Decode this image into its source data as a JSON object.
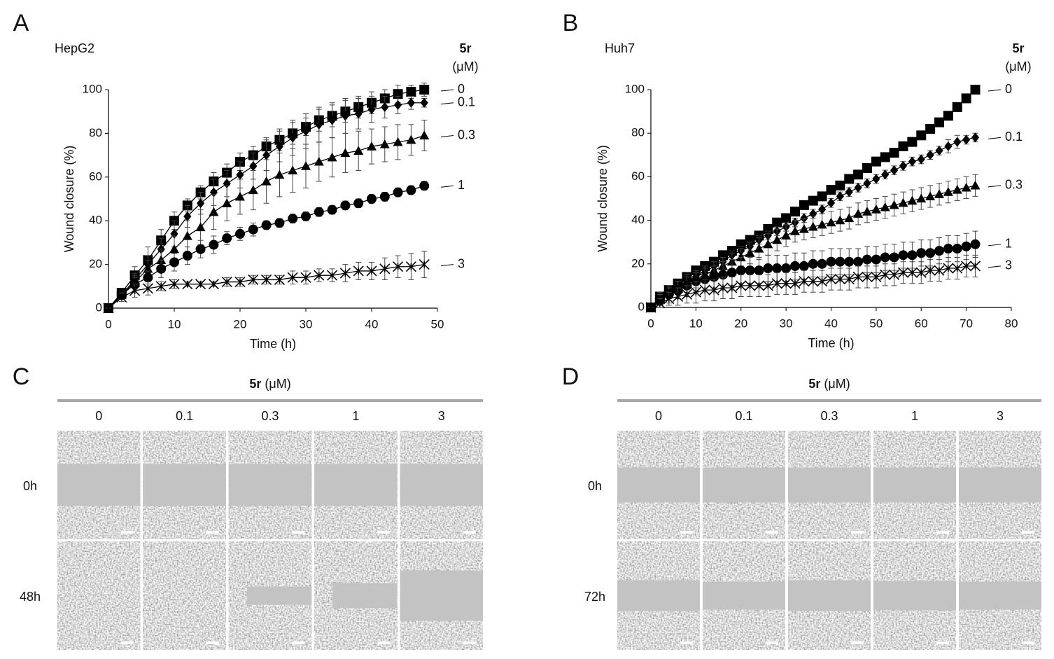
{
  "chart_data": [
    {
      "type": "line",
      "panel": "A",
      "subtitle": "HepG2",
      "legend_title": "5r",
      "legend_unit": "(μM)",
      "xlabel": "Time (h)",
      "ylabel": "Wound closure (%)",
      "x": [
        0,
        2,
        4,
        6,
        8,
        10,
        12,
        14,
        16,
        18,
        20,
        22,
        24,
        26,
        28,
        30,
        32,
        34,
        36,
        38,
        40,
        42,
        44,
        46,
        48
      ],
      "xlim": [
        0,
        50
      ],
      "xticks": [
        0,
        10,
        20,
        30,
        40,
        50
      ],
      "ylim": [
        0,
        100
      ],
      "yticks": [
        0,
        20,
        40,
        60,
        80,
        100
      ],
      "series": [
        {
          "name": "0",
          "color": "#000000",
          "marker": "square",
          "values": [
            0,
            7,
            15,
            22,
            31,
            40,
            47,
            53,
            58,
            62,
            67,
            70,
            74,
            77,
            80,
            83,
            86,
            88,
            90,
            92,
            94,
            96,
            98,
            99,
            100
          ],
          "errors": [
            0,
            2,
            4,
            6,
            5,
            4,
            3,
            3,
            4,
            4,
            4,
            4,
            4,
            5,
            5,
            4,
            5,
            5,
            5,
            5,
            5,
            4,
            4,
            3,
            3
          ]
        },
        {
          "name": "0.1",
          "color": "#000000",
          "marker": "diamond",
          "values": [
            0,
            6,
            13,
            20,
            27,
            34,
            42,
            48,
            53,
            57,
            61,
            65,
            70,
            74,
            78,
            81,
            84,
            86,
            88,
            89,
            91,
            92,
            93,
            94,
            94
          ],
          "errors": [
            0,
            2,
            3,
            4,
            5,
            6,
            5,
            5,
            6,
            6,
            6,
            6,
            7,
            7,
            8,
            8,
            8,
            8,
            8,
            7,
            6,
            5,
            4,
            3,
            2
          ]
        },
        {
          "name": "0.3",
          "color": "#000000",
          "marker": "triangle",
          "values": [
            0,
            6,
            12,
            18,
            22,
            27,
            33,
            37,
            44,
            48,
            51,
            54,
            58,
            61,
            63,
            65,
            67,
            69,
            71,
            72,
            74,
            75,
            76,
            77,
            79
          ],
          "errors": [
            0,
            2,
            3,
            4,
            5,
            6,
            7,
            8,
            8,
            8,
            8,
            9,
            10,
            10,
            10,
            10,
            9,
            9,
            9,
            9,
            8,
            8,
            8,
            7,
            7
          ]
        },
        {
          "name": "1",
          "color": "#000000",
          "marker": "circle",
          "values": [
            0,
            6,
            11,
            14,
            18,
            21,
            24,
            27,
            29,
            32,
            34,
            36,
            38,
            39,
            41,
            42,
            44,
            45,
            47,
            48,
            50,
            51,
            53,
            54,
            56
          ],
          "errors": [
            0,
            2,
            3,
            3,
            4,
            4,
            4,
            4,
            4,
            3,
            3,
            3,
            2,
            2,
            2,
            2,
            2,
            2,
            2,
            2,
            2,
            2,
            2,
            2,
            2
          ]
        },
        {
          "name": "3",
          "color": "#000000",
          "marker": "cross",
          "values": [
            0,
            5,
            8,
            9,
            10,
            11,
            11,
            11,
            11,
            12,
            12,
            13,
            13,
            13,
            14,
            14,
            15,
            15,
            16,
            17,
            17,
            18,
            19,
            19,
            20
          ],
          "errors": [
            0,
            2,
            3,
            3,
            2,
            2,
            1,
            1,
            1,
            2,
            2,
            2,
            2,
            2,
            3,
            3,
            3,
            3,
            4,
            4,
            4,
            5,
            5,
            6,
            6
          ]
        }
      ]
    },
    {
      "type": "line",
      "panel": "B",
      "subtitle": "Huh7",
      "legend_title": "5r",
      "legend_unit": "(μM)",
      "xlabel": "Time (h)",
      "ylabel": "Wound closure (%)",
      "x": [
        0,
        2,
        4,
        6,
        8,
        10,
        12,
        14,
        16,
        18,
        20,
        22,
        24,
        26,
        28,
        30,
        32,
        34,
        36,
        38,
        40,
        42,
        44,
        46,
        48,
        50,
        52,
        54,
        56,
        58,
        60,
        62,
        64,
        66,
        68,
        70,
        72
      ],
      "xlim": [
        0,
        80
      ],
      "xticks": [
        0,
        10,
        20,
        30,
        40,
        50,
        60,
        70,
        80
      ],
      "ylim": [
        0,
        100
      ],
      "yticks": [
        0,
        20,
        40,
        60,
        80,
        100
      ],
      "series": [
        {
          "name": "0",
          "color": "#000000",
          "marker": "square",
          "values": [
            0,
            5,
            8,
            11,
            14,
            17,
            19,
            21,
            24,
            26,
            29,
            31,
            33,
            36,
            39,
            41,
            44,
            47,
            49,
            51,
            54,
            56,
            59,
            61,
            64,
            67,
            69,
            71,
            74,
            76,
            79,
            82,
            85,
            88,
            92,
            96,
            100
          ],
          "errors": [
            0,
            1,
            1,
            1,
            1,
            1,
            1,
            1,
            1,
            1,
            1,
            1,
            1,
            1,
            1,
            1,
            1,
            1,
            1,
            1,
            1,
            1,
            1,
            1,
            1,
            1,
            1,
            1,
            1,
            1,
            1,
            1,
            1,
            1,
            1,
            1,
            1
          ]
        },
        {
          "name": "0.1",
          "color": "#000000",
          "marker": "diamond",
          "values": [
            0,
            4,
            7,
            10,
            12,
            14,
            16,
            19,
            21,
            24,
            26,
            28,
            31,
            33,
            35,
            37,
            39,
            41,
            43,
            45,
            48,
            51,
            53,
            55,
            57,
            59,
            61,
            63,
            65,
            67,
            68,
            70,
            72,
            74,
            76,
            77,
            78
          ],
          "errors": [
            0,
            2,
            2,
            2,
            2,
            2,
            2,
            2,
            2,
            2,
            2,
            2,
            2,
            2,
            2,
            2,
            2,
            2,
            2,
            2,
            2,
            2,
            2,
            2,
            2,
            2,
            2,
            2,
            2,
            2,
            2,
            2,
            2,
            3,
            3,
            2,
            2
          ]
        },
        {
          "name": "0.3",
          "color": "#000000",
          "marker": "triangle",
          "values": [
            0,
            4,
            7,
            9,
            11,
            13,
            15,
            17,
            19,
            21,
            23,
            25,
            27,
            29,
            31,
            33,
            35,
            36,
            37,
            38,
            39,
            40,
            41,
            43,
            44,
            45,
            46,
            47,
            48,
            49,
            50,
            51,
            52,
            53,
            54,
            55,
            56
          ],
          "errors": [
            0,
            3,
            3,
            3,
            4,
            4,
            4,
            4,
            4,
            4,
            4,
            5,
            5,
            5,
            5,
            5,
            5,
            5,
            5,
            5,
            5,
            5,
            5,
            5,
            5,
            5,
            5,
            5,
            5,
            5,
            5,
            5,
            5,
            5,
            5,
            5,
            5
          ]
        },
        {
          "name": "1",
          "color": "#000000",
          "marker": "circle",
          "values": [
            0,
            3,
            6,
            8,
            10,
            12,
            13,
            14,
            15,
            16,
            17,
            17,
            17,
            18,
            18,
            18,
            19,
            19,
            20,
            20,
            21,
            21,
            21,
            21,
            22,
            22,
            23,
            23,
            24,
            24,
            25,
            25,
            26,
            27,
            27,
            28,
            29
          ],
          "errors": [
            0,
            3,
            4,
            4,
            5,
            5,
            5,
            5,
            6,
            6,
            6,
            6,
            6,
            6,
            6,
            6,
            6,
            6,
            6,
            6,
            6,
            6,
            6,
            6,
            6,
            6,
            6,
            6,
            6,
            6,
            6,
            6,
            6,
            6,
            6,
            6,
            6
          ]
        },
        {
          "name": "3",
          "color": "#000000",
          "marker": "cross",
          "values": [
            0,
            2,
            4,
            5,
            6,
            7,
            8,
            8,
            9,
            9,
            10,
            10,
            10,
            10,
            11,
            11,
            11,
            12,
            12,
            12,
            13,
            13,
            13,
            14,
            14,
            14,
            15,
            15,
            16,
            16,
            16,
            17,
            17,
            18,
            18,
            19,
            19
          ],
          "errors": [
            0,
            2,
            3,
            4,
            4,
            5,
            5,
            5,
            5,
            5,
            5,
            5,
            5,
            5,
            5,
            5,
            5,
            5,
            5,
            5,
            5,
            5,
            5,
            5,
            5,
            5,
            5,
            5,
            5,
            5,
            5,
            5,
            5,
            5,
            5,
            5,
            5
          ]
        }
      ]
    }
  ],
  "image_panels": [
    {
      "panel": "C",
      "compound": "5r",
      "unit": "(μM)",
      "columns": [
        "0",
        "0.1",
        "0.3",
        "1",
        "3"
      ],
      "rows": [
        "0h",
        "48h"
      ]
    },
    {
      "panel": "D",
      "compound": "5r",
      "unit": "(μM)",
      "columns": [
        "0",
        "0.1",
        "0.3",
        "1",
        "3"
      ],
      "rows": [
        "0h",
        "72h"
      ]
    }
  ]
}
